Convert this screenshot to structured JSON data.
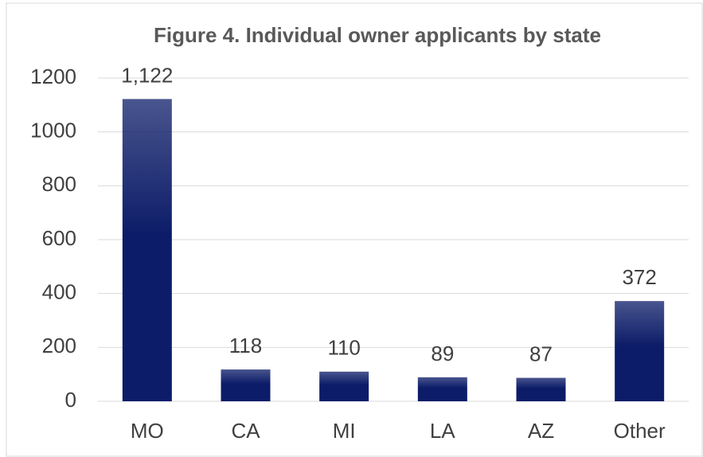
{
  "chart_data": {
    "type": "bar",
    "title": "Figure 4. Individual owner applicants by state",
    "categories": [
      "MO",
      "CA",
      "MI",
      "LA",
      "AZ",
      "Other"
    ],
    "values": [
      1122,
      118,
      110,
      89,
      87,
      372
    ],
    "value_labels": [
      "1,122",
      "118",
      "110",
      "89",
      "87",
      "372"
    ],
    "color": "#0c1c68",
    "ylim": [
      0,
      1200
    ],
    "yticks": [
      0,
      200,
      400,
      600,
      800,
      1000,
      1200
    ],
    "grid": true
  }
}
